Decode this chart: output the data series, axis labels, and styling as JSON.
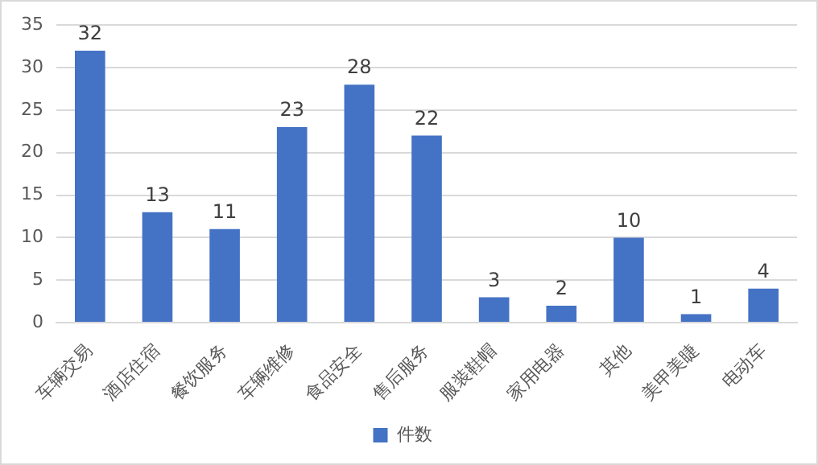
{
  "chart_data": {
    "type": "bar",
    "categories": [
      "车辆交易",
      "酒店住宿",
      "餐饮服务",
      "车辆维修",
      "食品安全",
      "售后服务",
      "服装鞋帽",
      "家用电器",
      "其他",
      "美甲美睫",
      "电动车"
    ],
    "series": [
      {
        "name": "件数",
        "color": "#4472c4",
        "values": [
          32,
          13,
          11,
          23,
          28,
          22,
          3,
          2,
          10,
          1,
          4
        ]
      }
    ],
    "ylim": [
      0,
      35
    ],
    "yticks": [
      0,
      5,
      10,
      15,
      20,
      25,
      30,
      35
    ],
    "grid": "y",
    "legend": "bottom",
    "data_labels": true
  }
}
